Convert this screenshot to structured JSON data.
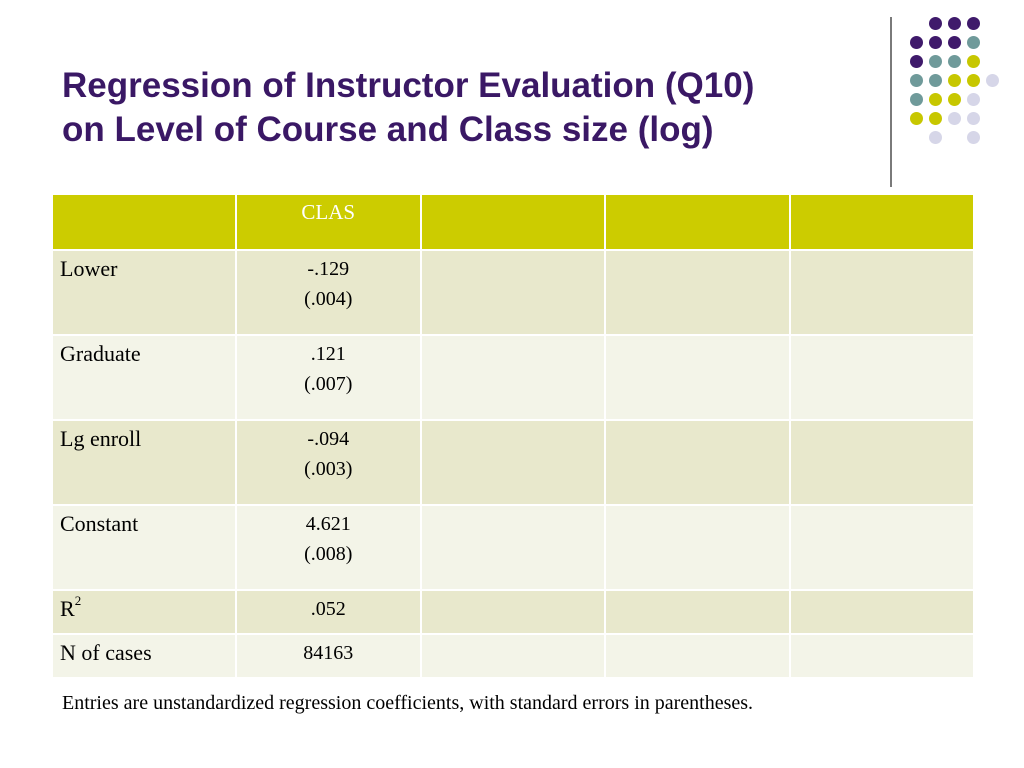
{
  "title": {
    "line1": "Regression of Instructor Evaluation (Q10)",
    "line2": "on Level of Course and Class size (log)"
  },
  "decoration": {
    "dot_colors": {
      "purple": "#3f1a6b",
      "teal": "#6f9a9a",
      "yellow": "#c7c700",
      "lavender": "#d6d6e8"
    }
  },
  "table": {
    "header": [
      "",
      "CLAS",
      "",
      "",
      ""
    ],
    "rows": [
      {
        "label": "Lower",
        "coef": "-.129",
        "se": "(.004)"
      },
      {
        "label": "Graduate",
        "coef": ".121",
        "se": "(.007)"
      },
      {
        "label": "Lg enroll",
        "coef": "-.094",
        "se": "(.003)"
      },
      {
        "label": "Constant",
        "coef": "4.621",
        "se": "(.008)"
      }
    ],
    "r2": {
      "label": "R",
      "sup": "2",
      "value": ".052"
    },
    "n": {
      "label": "N of cases",
      "value": "84163"
    }
  },
  "footnote": "Entries are unstandardized regression coefficients, with standard errors in parentheses."
}
